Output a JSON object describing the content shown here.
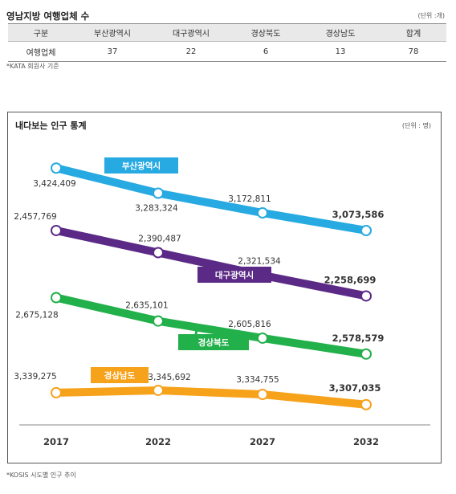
{
  "table": {
    "title": "영남지방 여행업체 수",
    "unit": "(단위 :개)",
    "headers": [
      "구분",
      "부산광역시",
      "대구광역시",
      "경상북도",
      "경상남도",
      "합계"
    ],
    "row": [
      "여행업체",
      "37",
      "22",
      "6",
      "13",
      "78"
    ],
    "note": "*KATA 회원사 기준"
  },
  "chart_note": "*KOSIS 시도별 인구 추이",
  "chart_data": {
    "type": "line",
    "title": "내다보는 인구 통계",
    "unit": "(단위 : 명)",
    "categories": [
      "2017",
      "2022",
      "2027",
      "2032"
    ],
    "series": [
      {
        "name": "부산광역시",
        "color": "#27aae1",
        "values": [
          3424409,
          3283324,
          3172811,
          3073586
        ],
        "labels": [
          "3,424,409",
          "3,283,324",
          "3,172,811",
          "3,073,586"
        ]
      },
      {
        "name": "대구광역시",
        "color": "#5b2a86",
        "values": [
          2457769,
          2390487,
          2321534,
          2258699
        ],
        "labels": [
          "2,457,769",
          "2,390,487",
          "2,321,534",
          "2,258,699"
        ]
      },
      {
        "name": "경상북도",
        "color": "#22b04a",
        "values": [
          2675128,
          2635101,
          2605816,
          2578579
        ],
        "labels": [
          "2,675,128",
          "2,635,101",
          "2,605,816",
          "2,578,579"
        ]
      },
      {
        "name": "경상남도",
        "color": "#f7a21b",
        "values": [
          3339275,
          3345692,
          3334755,
          3307035
        ],
        "labels": [
          "3,339,275",
          "3,345,692",
          "3,334,755",
          "3,307,035"
        ]
      }
    ],
    "grid": false,
    "legend": "inline"
  }
}
